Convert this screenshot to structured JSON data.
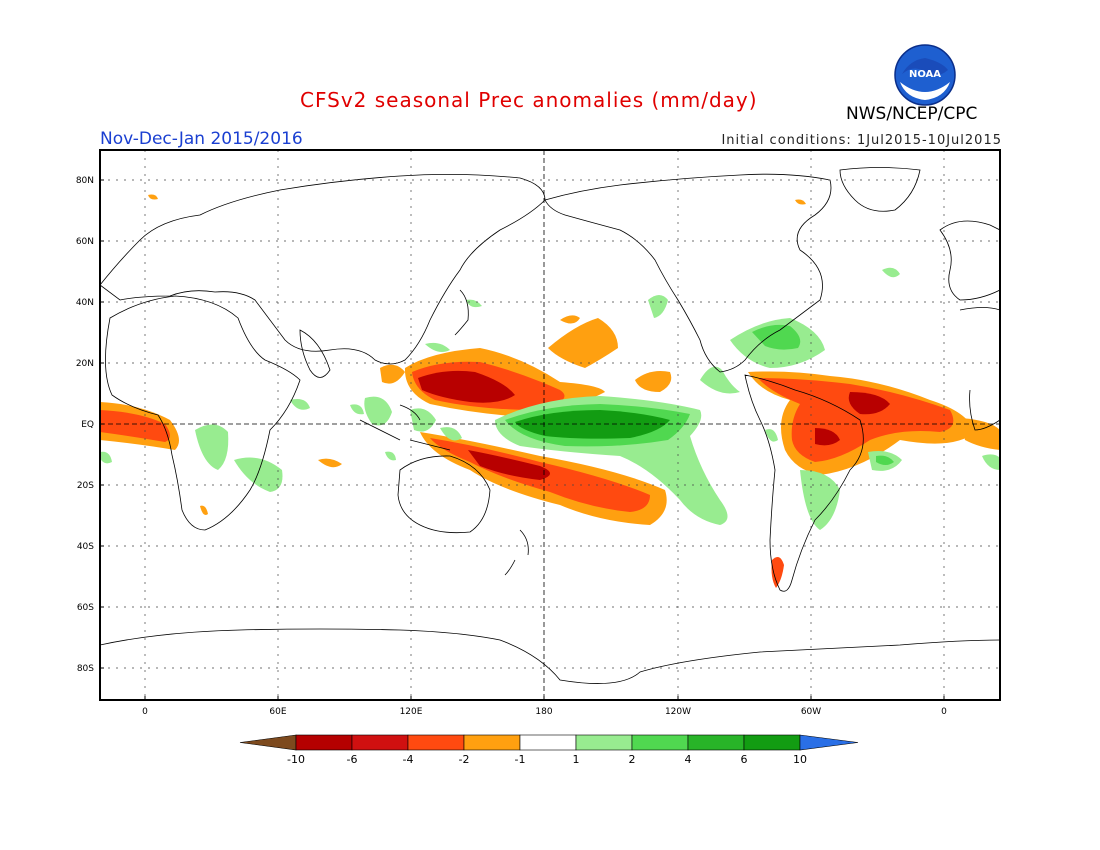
{
  "title": "CFSv2 seasonal Prec anomalies (mm/day)",
  "agency": "NWS/NCEP/CPC",
  "period": "Nov-Dec-Jan 2015/2016",
  "initial_conditions": "Initial conditions: 1Jul2015-10Jul2015",
  "logo": {
    "icon": "noaa-logo-icon",
    "text": "NOAA"
  },
  "axes": {
    "lat_labels": [
      "80N",
      "60N",
      "40N",
      "20N",
      "EQ",
      "20S",
      "40S",
      "60S",
      "80S"
    ],
    "lon_labels": [
      "0",
      "60E",
      "120E",
      "180",
      "120W",
      "60W",
      "0"
    ]
  },
  "colorbar": {
    "labels": [
      "-10",
      "-6",
      "-4",
      "-2",
      "-1",
      "1",
      "2",
      "4",
      "6",
      "10"
    ],
    "colors": [
      "#7d4a1e",
      "#b50000",
      "#d01010",
      "#ff4a10",
      "#ffa010",
      "#ffffff",
      "#98ec90",
      "#50d850",
      "#28b428",
      "#129c12",
      "#2a6fe6"
    ]
  },
  "colors": {
    "title": "#e00000",
    "period": "#1a3fd1",
    "dry_strong": "#b80000",
    "dry_medium": "#e8200a",
    "dry_light": "#ffa010",
    "wet_light": "#98ec90",
    "wet_medium": "#50d850",
    "wet_strong": "#129c12"
  }
}
